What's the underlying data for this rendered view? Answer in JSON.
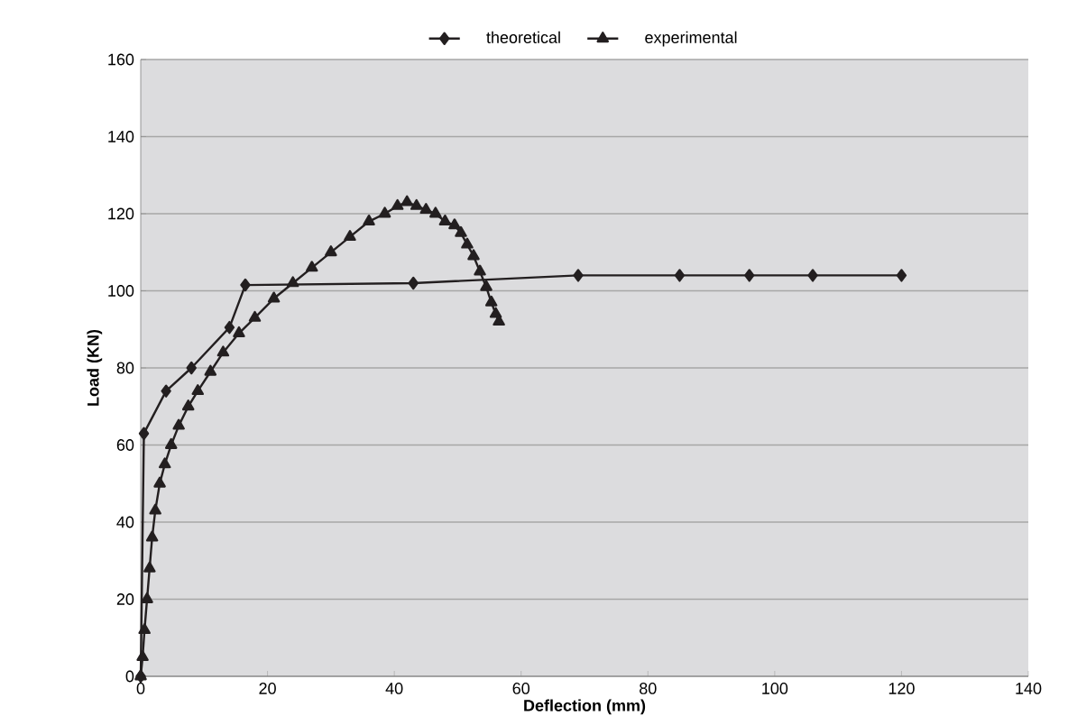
{
  "chart_data": {
    "type": "line",
    "xlabel": "Deflection (mm)",
    "ylabel": "Load (KN)",
    "xlim": [
      0,
      140
    ],
    "ylim": [
      0,
      160
    ],
    "xticks": [
      0,
      20,
      40,
      60,
      80,
      100,
      120,
      140
    ],
    "yticks": [
      0,
      20,
      40,
      60,
      80,
      100,
      120,
      140,
      160
    ],
    "grid": "y",
    "legend": "top",
    "series": [
      {
        "name": "theoretical",
        "color": "#231f20",
        "marker": "diamond",
        "x": [
          0,
          0.5,
          4,
          8,
          14,
          16.5,
          43,
          69,
          85,
          96,
          106,
          120
        ],
        "values": [
          0,
          63,
          74,
          80,
          90.5,
          101.5,
          102,
          104,
          104,
          104,
          104,
          104
        ]
      },
      {
        "name": "experimental",
        "color": "#231f20",
        "marker": "triangle",
        "x": [
          0,
          0.3,
          0.6,
          1,
          1.4,
          1.8,
          2.3,
          3,
          3.8,
          4.8,
          6,
          7.5,
          9,
          11,
          13,
          15.5,
          18,
          21,
          24,
          27,
          30,
          33,
          36,
          38.5,
          40.5,
          42,
          43.5,
          45,
          46.5,
          48,
          49.5,
          50.5,
          51.5,
          52.5,
          53.5,
          54.5,
          55.3,
          56,
          56.5
        ],
        "values": [
          0,
          5,
          12,
          20,
          28,
          36,
          43,
          50,
          55,
          60,
          65,
          70,
          74,
          79,
          84,
          89,
          93,
          98,
          102,
          106,
          110,
          114,
          118,
          120,
          122,
          123,
          122,
          121,
          120,
          118,
          117,
          115,
          112,
          109,
          105,
          101,
          97,
          94,
          92
        ]
      }
    ]
  }
}
